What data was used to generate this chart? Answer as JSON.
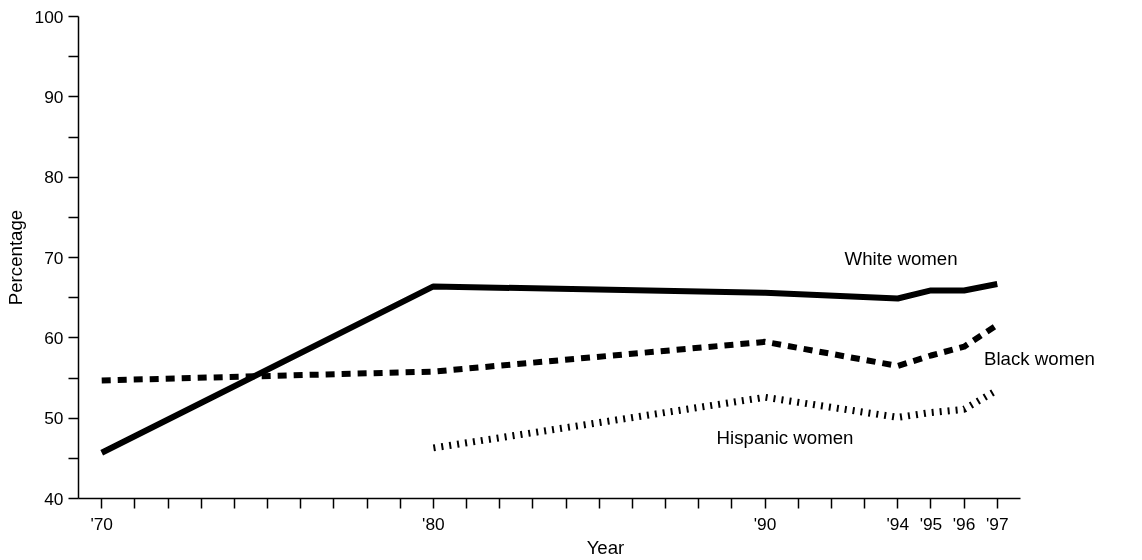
{
  "chart_data": {
    "type": "line",
    "xlabel": "Year",
    "ylabel": "Percentage",
    "x": [
      1970,
      1980,
      1990,
      1994,
      1995,
      1996,
      1997
    ],
    "series": [
      {
        "name": "White women",
        "color": "#000000",
        "line_style": "solid",
        "values": [
          45.7,
          66.4,
          65.6,
          64.9,
          65.9,
          65.9,
          66.7
        ]
      },
      {
        "name": "Black women",
        "color": "#000000",
        "line_style": "dashed",
        "values": [
          54.7,
          55.8,
          59.5,
          56.5,
          57.8,
          58.9,
          61.6
        ]
      },
      {
        "name": "Hispanic women",
        "color": "#000000",
        "line_style": "dotted",
        "values": [
          null,
          46.3,
          52.6,
          50.1,
          50.7,
          51.1,
          53.5
        ]
      }
    ],
    "xlim": [
      1969.3,
      1997.7
    ],
    "ylim": [
      40,
      100
    ],
    "xticks": [
      {
        "value": 1970,
        "label": "'70"
      },
      {
        "value": 1971,
        "label": null
      },
      {
        "value": 1972,
        "label": null
      },
      {
        "value": 1973,
        "label": null
      },
      {
        "value": 1974,
        "label": null
      },
      {
        "value": 1975,
        "label": null
      },
      {
        "value": 1976,
        "label": null
      },
      {
        "value": 1977,
        "label": null
      },
      {
        "value": 1978,
        "label": null
      },
      {
        "value": 1979,
        "label": null
      },
      {
        "value": 1980,
        "label": "'80"
      },
      {
        "value": 1981,
        "label": null
      },
      {
        "value": 1982,
        "label": null
      },
      {
        "value": 1983,
        "label": null
      },
      {
        "value": 1984,
        "label": null
      },
      {
        "value": 1985,
        "label": null
      },
      {
        "value": 1986,
        "label": null
      },
      {
        "value": 1987,
        "label": null
      },
      {
        "value": 1988,
        "label": null
      },
      {
        "value": 1989,
        "label": null
      },
      {
        "value": 1990,
        "label": "'90"
      },
      {
        "value": 1991,
        "label": null
      },
      {
        "value": 1992,
        "label": null
      },
      {
        "value": 1993,
        "label": null
      },
      {
        "value": 1994,
        "label": "'94"
      },
      {
        "value": 1995,
        "label": "'95"
      },
      {
        "value": 1996,
        "label": "'96"
      },
      {
        "value": 1997,
        "label": "'97"
      }
    ],
    "yticks": [
      40,
      {
        "value": 45,
        "label": null
      },
      50,
      {
        "value": 55,
        "label": null
      },
      60,
      {
        "value": 65,
        "label": null
      },
      70,
      {
        "value": 75,
        "label": null
      },
      80,
      {
        "value": 85,
        "label": null
      },
      90,
      {
        "value": 95,
        "label": null
      },
      100
    ],
    "grid": false,
    "marker": "none"
  }
}
